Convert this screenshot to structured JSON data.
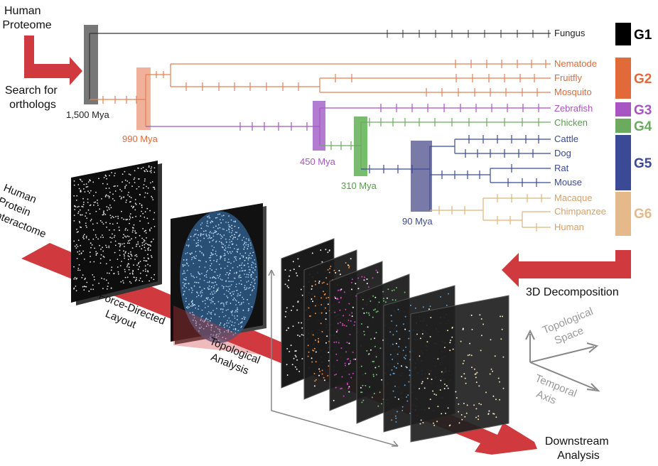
{
  "labels": {
    "human_proteome": [
      "Human",
      "Proteome"
    ],
    "search_for_orthologs": [
      "Search for",
      "orthologs"
    ],
    "human_protein_interactome": [
      "Human",
      "Protein",
      "Interactome"
    ],
    "force_directed_layout": [
      "Force-Directed",
      "Layout"
    ],
    "topological_analysis": [
      "Topological",
      "Analysis"
    ],
    "decomposition": "3D Decomposition",
    "topological_space": [
      "Topological",
      "Space"
    ],
    "temporal_axis": [
      "Temporal",
      "Axis"
    ],
    "downstream_analysis": [
      "Downstream",
      "Analysis"
    ]
  },
  "divergence_times": [
    "1,500 Mya",
    "990 Mya",
    "450 Mya",
    "310 Mya",
    "90 Mya"
  ],
  "species": [
    {
      "name": "Fungus",
      "group": "G1"
    },
    {
      "name": "Nematode",
      "group": "G2"
    },
    {
      "name": "Fruitfly",
      "group": "G2"
    },
    {
      "name": "Mosquito",
      "group": "G2"
    },
    {
      "name": "Zebrafish",
      "group": "G3"
    },
    {
      "name": "Chicken",
      "group": "G4"
    },
    {
      "name": "Cattle",
      "group": "G5"
    },
    {
      "name": "Dog",
      "group": "G5"
    },
    {
      "name": "Rat",
      "group": "G5"
    },
    {
      "name": "Mouse",
      "group": "G5"
    },
    {
      "name": "Macaque",
      "group": "G6"
    },
    {
      "name": "Chimpanzee",
      "group": "G6"
    },
    {
      "name": "Human",
      "group": "G6"
    }
  ],
  "groups": [
    {
      "name": "G1",
      "color": "#000000"
    },
    {
      "name": "G2",
      "color": "#e2693a"
    },
    {
      "name": "G3",
      "color": "#a755c2"
    },
    {
      "name": "G4",
      "color": "#6aab5e"
    },
    {
      "name": "G5",
      "color": "#3b4a94"
    },
    {
      "name": "G6",
      "color": "#e5b98a"
    }
  ],
  "colors": {
    "arrow_red": "#d03a3f",
    "line_dark": "#333333",
    "line_g2": "#e38054",
    "line_g3": "#a755c2",
    "line_g4": "#6aab5e",
    "line_g5": "#3b4a94",
    "line_g6": "#e0b37a",
    "bar_1500": "#777777",
    "bar_990": "#f0b09a",
    "bar_450": "#b27dd0",
    "bar_310": "#78bc6e",
    "bar_90": "#7a7aa8",
    "axis_grey": "#888888"
  }
}
